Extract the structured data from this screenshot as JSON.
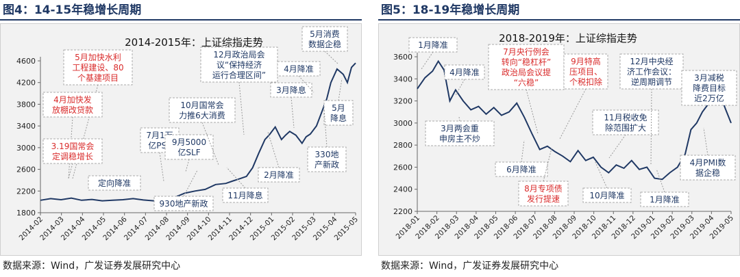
{
  "figures": [
    {
      "heading": "图4：14-15年稳增长周期",
      "source": "数据来源：Wind，广发证券发展研究中心"
    },
    {
      "heading": "图5：18-19年稳增长周期",
      "source": "数据来源：Wind，广发证券发展研究中心"
    }
  ],
  "colors": {
    "line": "#1f3864",
    "red": "#d92b2b",
    "navy": "#1f3864"
  },
  "chart_data": [
    {
      "type": "line",
      "title": "2014-2015年：上证综指走势",
      "ylim": [
        1800,
        4600
      ],
      "yticks": [
        1800,
        2200,
        2600,
        3000,
        3400,
        3800,
        4200,
        4600
      ],
      "xticks": [
        "2014-02",
        "2014-03",
        "2014-04",
        "2014-05",
        "2014-06",
        "2014-07",
        "2014-08",
        "2014-09",
        "2014-10",
        "2014-11",
        "2014-12",
        "2015-01",
        "2015-02",
        "2015-03",
        "2015-04",
        "2015-05"
      ],
      "series": [
        {
          "x": [
            0,
            0.5,
            1,
            1.5,
            2,
            2.5,
            3,
            3.5,
            4,
            4.5,
            5,
            5.5,
            6,
            6.5,
            7,
            7.5,
            8,
            8.5,
            9,
            9.3,
            9.7,
            10,
            10.3,
            10.6,
            10.9,
            11.1,
            11.4,
            11.7,
            11.9,
            12.1,
            12.4,
            12.7,
            12.9,
            13.1,
            13.4,
            13.7,
            13.9,
            14.1,
            14.4,
            14.7,
            14.9,
            15.1,
            15.3
          ],
          "values": [
            2030,
            2060,
            2040,
            2070,
            2030,
            2045,
            2020,
            2030,
            2040,
            2060,
            2035,
            2020,
            2040,
            2080,
            2160,
            2200,
            2230,
            2320,
            2340,
            2380,
            2430,
            2470,
            2630,
            2900,
            3150,
            3230,
            3380,
            3150,
            3230,
            3300,
            3230,
            3080,
            3200,
            3250,
            3400,
            3700,
            3900,
            4200,
            4450,
            4350,
            4200,
            4480,
            4560
          ]
        }
      ],
      "annotations": [
        {
          "text": "5月加快水利\n工程建设、80\n个基建项目",
          "color": "red"
        },
        {
          "text": "4月加快发\n放棚改贷款",
          "color": "red"
        },
        {
          "text": "3.19国常会\n定调稳增长",
          "color": "red"
        },
        {
          "text": "定向降准",
          "color": "navy"
        },
        {
          "text": "7月1万\n亿PSL",
          "color": "navy"
        },
        {
          "text": "9月5000\n亿SLF",
          "color": "navy"
        },
        {
          "text": "930地产新政",
          "color": "navy"
        },
        {
          "text": "10月国常会\n力推6大消费",
          "color": "navy"
        },
        {
          "text": "12月政治局会\n议“保持经济\n运行合理区间”",
          "color": "navy"
        },
        {
          "text": "11月降息",
          "color": "navy"
        },
        {
          "text": "2月降准",
          "color": "navy"
        },
        {
          "text": "3月降息",
          "color": "navy"
        },
        {
          "text": "4月降准",
          "color": "navy"
        },
        {
          "text": "5月消费\n数据企稳",
          "color": "navy"
        },
        {
          "text": "5月\n降息",
          "color": "navy"
        },
        {
          "text": "330地\n产新政",
          "color": "navy"
        }
      ]
    },
    {
      "type": "line",
      "title": "2018-2019年：上证综指走势",
      "ylim": [
        2200,
        3600
      ],
      "yticks": [
        2200,
        2400,
        2600,
        2800,
        3000,
        3200,
        3400,
        3600
      ],
      "xticks": [
        "2018-01",
        "2018-02",
        "2018-03",
        "2018-04",
        "2018-05",
        "2018-06",
        "2018-07",
        "2018-08",
        "2018-09",
        "2018-10",
        "2018-11",
        "2018-12",
        "2019-01",
        "2019-02",
        "2019-03",
        "2019-04",
        "2019-05"
      ],
      "series": [
        {
          "x": [
            0,
            0.4,
            0.8,
            1.1,
            1.4,
            1.7,
            2.0,
            2.4,
            2.8,
            3.2,
            3.6,
            4.0,
            4.4,
            4.8,
            5.2,
            5.6,
            6.0,
            6.4,
            6.8,
            7.2,
            7.6,
            8.0,
            8.4,
            8.8,
            9.2,
            9.6,
            10.0,
            10.4,
            10.8,
            11.2,
            11.6,
            12.0,
            12.4,
            12.8,
            13.2,
            13.6,
            14.0,
            14.3,
            14.6,
            14.9,
            15.2,
            15.5,
            15.8,
            16.1,
            16.4
          ],
          "values": [
            3310,
            3410,
            3470,
            3560,
            3480,
            3200,
            3300,
            3200,
            3120,
            3150,
            3080,
            3140,
            3070,
            3100,
            3180,
            3050,
            2900,
            2760,
            2790,
            2740,
            2700,
            2650,
            2750,
            2660,
            2690,
            2600,
            2550,
            2620,
            2590,
            2660,
            2580,
            2600,
            2500,
            2490,
            2550,
            2600,
            2720,
            2940,
            3000,
            3100,
            3170,
            3230,
            3270,
            3130,
            3000
          ]
        }
      ],
      "annotations": [
        {
          "text": "1月降准",
          "color": "navy"
        },
        {
          "text": "4月降准",
          "color": "navy"
        },
        {
          "text": "3月两会重\n申房主不炒",
          "color": "navy"
        },
        {
          "text": "6月降准",
          "color": "navy"
        },
        {
          "text": "7月央行例会\n转向“稳杠杆”\n政治局会议提\n“六稳”",
          "color": "red"
        },
        {
          "text": "9月特高\n压项目、\n个税扣除",
          "color": "red"
        },
        {
          "text": "8月专项债\n发行提速",
          "color": "red"
        },
        {
          "text": "10月降准",
          "color": "navy"
        },
        {
          "text": "11月税收免\n除范围扩大",
          "color": "navy"
        },
        {
          "text": "12月中央经\n济工作会议：\n逆周期调节",
          "color": "navy"
        },
        {
          "text": "1月降准",
          "color": "navy"
        },
        {
          "text": "3月减税\n降费目标\n近2万亿",
          "color": "navy"
        },
        {
          "text": "4月PMI数\n据企稳",
          "color": "navy"
        }
      ]
    }
  ]
}
